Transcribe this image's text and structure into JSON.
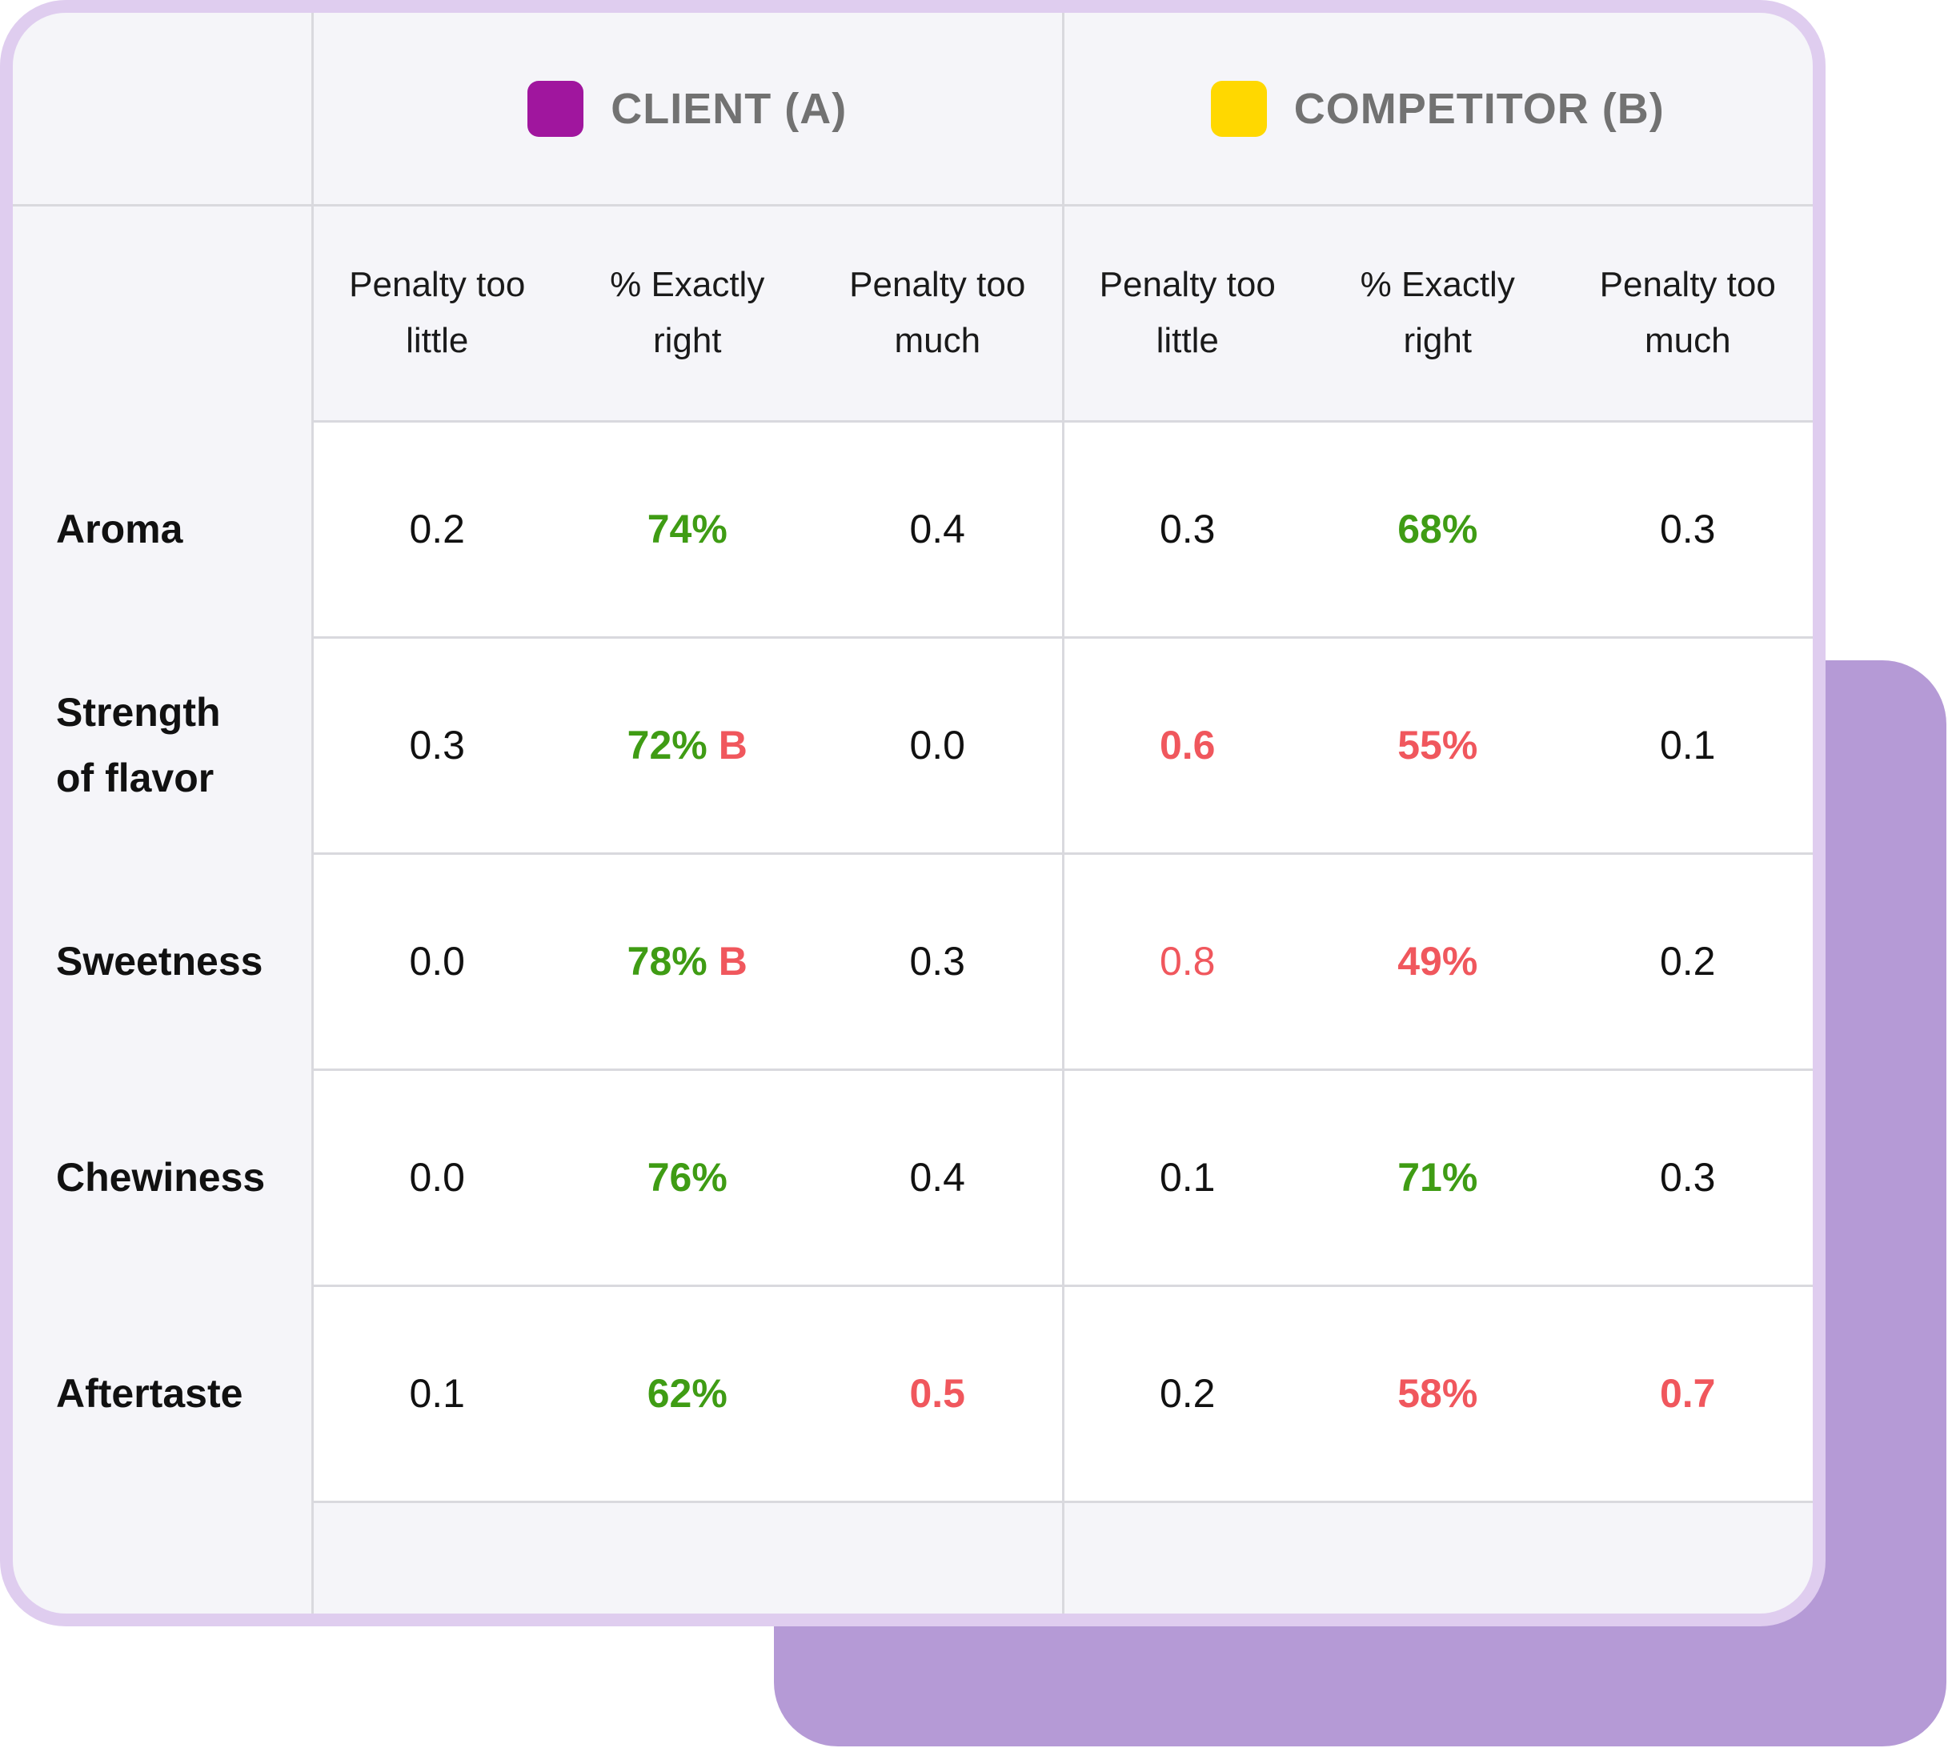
{
  "groups": [
    {
      "label": "CLIENT (A)",
      "color": "#a0169e"
    },
    {
      "label": "COMPETITOR (B)",
      "color": "#ffd800"
    }
  ],
  "column_headers": [
    [
      "Penalty too",
      "little"
    ],
    [
      "% Exactly",
      "right"
    ],
    [
      "Penalty too",
      "much"
    ],
    [
      "Penalty too",
      "little"
    ],
    [
      "% Exactly",
      "right"
    ],
    [
      "Penalty too",
      "much"
    ]
  ],
  "colors": {
    "good": "#3f9c14",
    "bad": "#f0575d",
    "accent_back": "#b59ad6",
    "border": "#dfcdef"
  },
  "rows": [
    {
      "label": [
        "Aroma"
      ],
      "cells": [
        {
          "v": "0.2"
        },
        {
          "v": "74%",
          "tone": "green"
        },
        {
          "v": "0.4"
        },
        {
          "v": "0.3"
        },
        {
          "v": "68%",
          "tone": "green"
        },
        {
          "v": "0.3"
        }
      ]
    },
    {
      "label": [
        "Strength",
        "of flavor"
      ],
      "cells": [
        {
          "v": "0.3"
        },
        {
          "v": "72%",
          "tone": "green",
          "sig": "B"
        },
        {
          "v": "0.0"
        },
        {
          "v": "0.6",
          "tone": "red"
        },
        {
          "v": "55%",
          "tone": "red"
        },
        {
          "v": "0.1"
        }
      ]
    },
    {
      "label": [
        "Sweetness"
      ],
      "cells": [
        {
          "v": "0.0"
        },
        {
          "v": "78%",
          "tone": "green",
          "sig": "B"
        },
        {
          "v": "0.3"
        },
        {
          "v": "0.8",
          "tone": "red-light"
        },
        {
          "v": "49%",
          "tone": "red"
        },
        {
          "v": "0.2"
        }
      ]
    },
    {
      "label": [
        "Chewiness"
      ],
      "cells": [
        {
          "v": "0.0"
        },
        {
          "v": "76%",
          "tone": "green"
        },
        {
          "v": "0.4"
        },
        {
          "v": "0.1"
        },
        {
          "v": "71%",
          "tone": "green"
        },
        {
          "v": "0.3"
        }
      ]
    },
    {
      "label": [
        "Aftertaste"
      ],
      "cells": [
        {
          "v": "0.1"
        },
        {
          "v": "62%",
          "tone": "green"
        },
        {
          "v": "0.5",
          "tone": "red"
        },
        {
          "v": "0.2"
        },
        {
          "v": "58%",
          "tone": "red"
        },
        {
          "v": "0.7",
          "tone": "red"
        }
      ]
    }
  ]
}
